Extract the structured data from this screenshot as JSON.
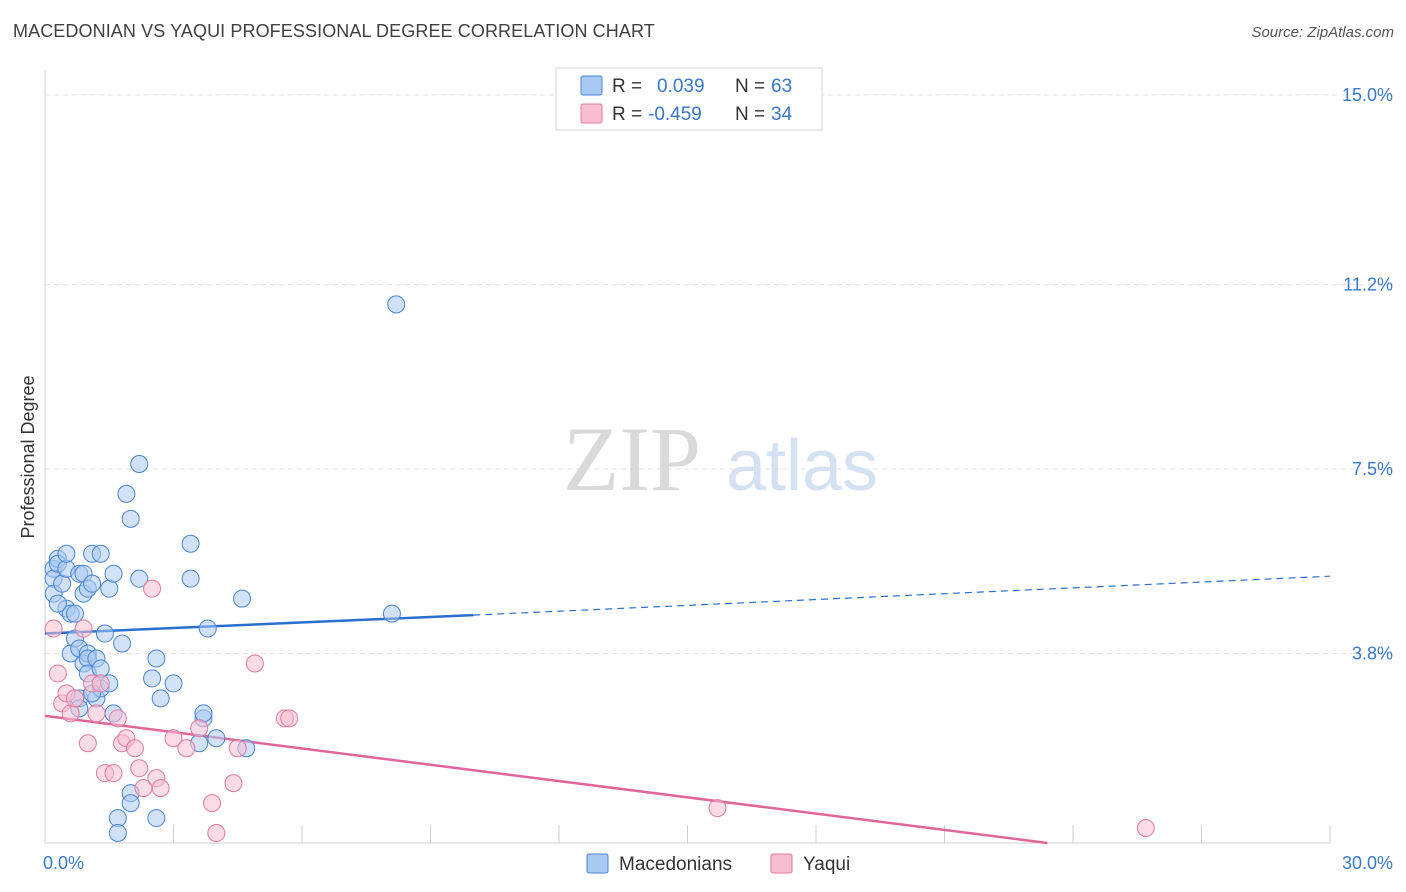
{
  "header": {
    "title": "MACEDONIAN VS YAQUI PROFESSIONAL DEGREE CORRELATION CHART",
    "source": "Source: ZipAtlas.com"
  },
  "watermark": {
    "zip": "ZIP",
    "atlas": "atlas"
  },
  "colors": {
    "blue_fill": "#a9c8f2",
    "blue_stroke": "#4a86d4",
    "blue_line": "#2a6fcf",
    "pink_fill": "#f7bdd0",
    "pink_stroke": "#e07aa0",
    "pink_line": "#e0669a",
    "value_text": "#3a78c8",
    "grid": "#e3e3e3"
  },
  "legend": {
    "rows": [
      {
        "r_label": "R =",
        "r_value": "0.039",
        "n_label": "N =",
        "n_value": "63",
        "series": "blue"
      },
      {
        "r_label": "R =",
        "r_value": "-0.459",
        "n_label": "N =",
        "n_value": "34",
        "series": "pink"
      }
    ]
  },
  "chart_data": {
    "type": "scatter",
    "title": "MACEDONIAN VS YAQUI PROFESSIONAL DEGREE CORRELATION CHART",
    "xlabel": "",
    "ylabel": "Professional Degree",
    "xlim": [
      0,
      30
    ],
    "ylim": [
      0,
      15.5
    ],
    "x_tick_labels": [
      {
        "value": 0,
        "label": "0.0%"
      },
      {
        "value": 30,
        "label": "30.0%"
      }
    ],
    "y_tick_labels": [
      {
        "value": 3.8,
        "label": "3.8%"
      },
      {
        "value": 7.5,
        "label": "7.5%"
      },
      {
        "value": 11.2,
        "label": "11.2%"
      },
      {
        "value": 15.0,
        "label": "15.0%"
      }
    ],
    "y_gridlines": [
      3.8,
      7.5,
      11.2,
      15.0
    ],
    "x_minor_ticks": [
      3,
      6,
      9,
      12,
      15,
      18,
      21,
      24,
      27,
      30
    ],
    "bottom_legend": [
      "Macedonians",
      "Yaqui"
    ],
    "series": [
      {
        "name": "Macedonians",
        "color": "blue",
        "points": [
          [
            0.2,
            5.5
          ],
          [
            0.2,
            5.3
          ],
          [
            0.2,
            5.0
          ],
          [
            0.3,
            5.7
          ],
          [
            0.3,
            5.6
          ],
          [
            0.4,
            5.2
          ],
          [
            0.5,
            5.5
          ],
          [
            0.5,
            5.8
          ],
          [
            0.5,
            4.7
          ],
          [
            0.6,
            4.6
          ],
          [
            0.3,
            4.8
          ],
          [
            0.6,
            3.8
          ],
          [
            0.7,
            4.1
          ],
          [
            0.7,
            4.6
          ],
          [
            0.8,
            5.4
          ],
          [
            0.8,
            3.9
          ],
          [
            0.8,
            2.9
          ],
          [
            0.8,
            2.7
          ],
          [
            0.9,
            5.0
          ],
          [
            0.9,
            5.4
          ],
          [
            0.9,
            3.6
          ],
          [
            1.0,
            3.8
          ],
          [
            1.0,
            3.7
          ],
          [
            1.0,
            5.1
          ],
          [
            1.0,
            3.4
          ],
          [
            1.1,
            5.2
          ],
          [
            1.1,
            5.8
          ],
          [
            1.2,
            3.7
          ],
          [
            1.2,
            2.9
          ],
          [
            1.3,
            3.1
          ],
          [
            1.3,
            3.5
          ],
          [
            1.3,
            5.8
          ],
          [
            1.4,
            4.2
          ],
          [
            1.5,
            5.1
          ],
          [
            1.5,
            3.2
          ],
          [
            1.6,
            5.4
          ],
          [
            1.6,
            2.6
          ],
          [
            1.7,
            0.5
          ],
          [
            1.7,
            0.2
          ],
          [
            1.8,
            4.0
          ],
          [
            1.9,
            7.0
          ],
          [
            2.0,
            6.5
          ],
          [
            2.0,
            1.0
          ],
          [
            2.0,
            0.8
          ],
          [
            2.2,
            7.6
          ],
          [
            2.2,
            5.3
          ],
          [
            2.5,
            3.3
          ],
          [
            2.6,
            3.7
          ],
          [
            2.6,
            0.5
          ],
          [
            2.7,
            2.9
          ],
          [
            3.0,
            3.2
          ],
          [
            3.4,
            5.3
          ],
          [
            3.4,
            6.0
          ],
          [
            3.6,
            2.0
          ],
          [
            3.7,
            2.5
          ],
          [
            3.8,
            4.3
          ],
          [
            4.0,
            2.1
          ],
          [
            4.6,
            4.9
          ],
          [
            4.7,
            1.9
          ],
          [
            8.2,
            10.8
          ],
          [
            8.1,
            4.6
          ],
          [
            3.7,
            2.6
          ],
          [
            1.1,
            3.0
          ]
        ]
      },
      {
        "name": "Yaqui",
        "color": "pink",
        "points": [
          [
            0.2,
            4.3
          ],
          [
            0.3,
            3.4
          ],
          [
            0.4,
            2.8
          ],
          [
            0.5,
            3.0
          ],
          [
            0.6,
            2.6
          ],
          [
            0.7,
            2.9
          ],
          [
            0.9,
            4.3
          ],
          [
            1.0,
            2.0
          ],
          [
            1.1,
            3.2
          ],
          [
            1.2,
            2.6
          ],
          [
            1.4,
            1.4
          ],
          [
            1.6,
            1.4
          ],
          [
            1.7,
            2.5
          ],
          [
            1.8,
            2.0
          ],
          [
            1.9,
            2.1
          ],
          [
            2.1,
            1.9
          ],
          [
            2.2,
            1.5
          ],
          [
            2.3,
            1.1
          ],
          [
            2.5,
            5.1
          ],
          [
            2.6,
            1.3
          ],
          [
            2.7,
            1.1
          ],
          [
            3.0,
            2.1
          ],
          [
            3.3,
            1.9
          ],
          [
            3.6,
            2.3
          ],
          [
            3.9,
            0.8
          ],
          [
            4.0,
            0.2
          ],
          [
            4.4,
            1.2
          ],
          [
            4.5,
            1.9
          ],
          [
            4.9,
            3.6
          ],
          [
            5.6,
            2.5
          ],
          [
            5.7,
            2.5
          ],
          [
            15.7,
            0.7
          ],
          [
            25.7,
            0.3
          ],
          [
            1.3,
            3.2
          ]
        ]
      }
    ],
    "trendlines": [
      {
        "series": "Macedonians",
        "solid": [
          [
            0,
            4.2
          ],
          [
            10,
            4.57
          ]
        ],
        "dashed": [
          [
            10,
            4.57
          ],
          [
            30,
            5.35
          ]
        ]
      },
      {
        "series": "Yaqui",
        "solid": [
          [
            0,
            2.55
          ],
          [
            23.4,
            0.0
          ]
        ]
      }
    ]
  }
}
